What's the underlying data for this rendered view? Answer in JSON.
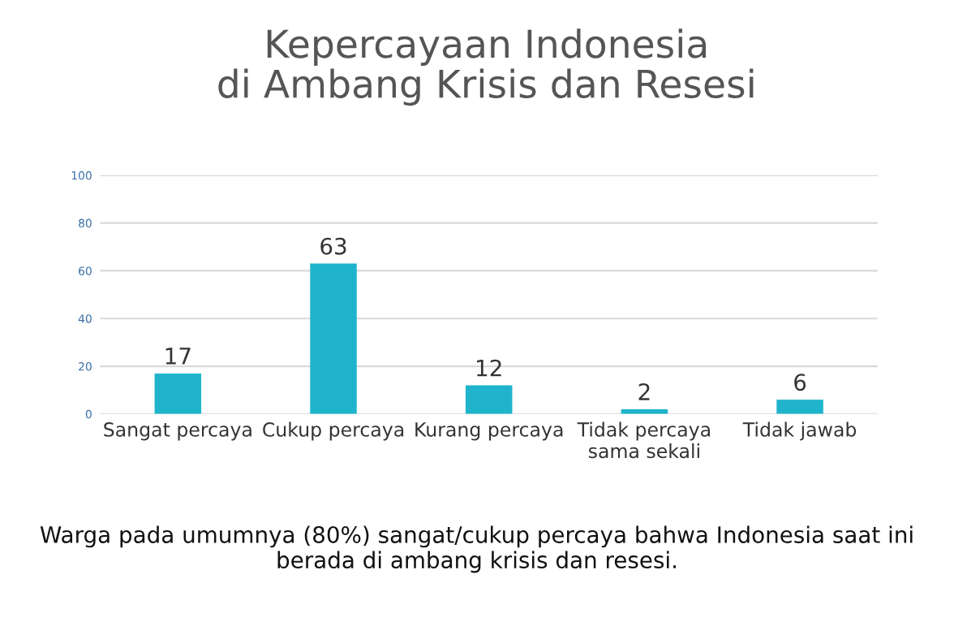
{
  "chart_data": {
    "type": "bar",
    "title": "Kepercayaan Indonesia\ndi Ambang Krisis dan Resesi",
    "categories": [
      "Sangat percaya",
      "Cukup percaya",
      "Kurang percaya",
      "Tidak percaya\nsama sekali",
      "Tidak jawab"
    ],
    "values": [
      17,
      63,
      12,
      2,
      6
    ],
    "color": "#1fb4cc",
    "ylim": [
      0,
      100
    ],
    "yticks": [
      0,
      20,
      40,
      60,
      80,
      100
    ],
    "grid": "y",
    "data_labels": true,
    "annotations": [
      "Warga pada umumnya (80%) sangat/cukup percaya bahwa Indonesia saat ini berada di ambang krisis dan resesi."
    ]
  }
}
